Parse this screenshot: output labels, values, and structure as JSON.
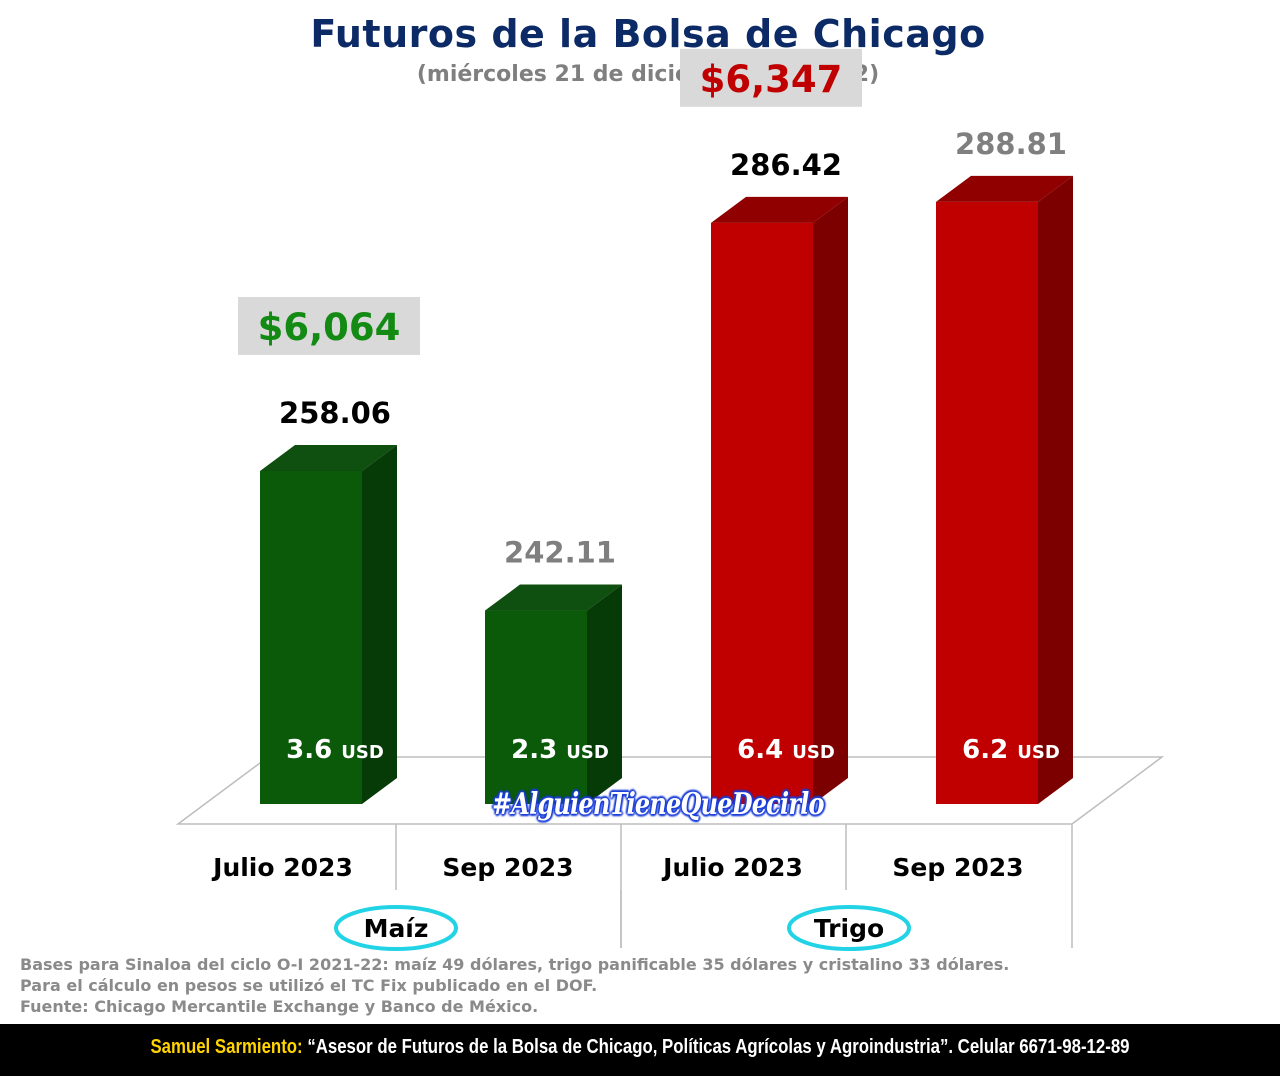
{
  "title": "Futuros de la Bolsa de Chicago",
  "subtitle": "(miércoles 21 de diciembre del 2022)",
  "chart_data": {
    "type": "bar",
    "categories": [
      "Julio 2023",
      "Sep 2023",
      "Julio 2023",
      "Sep 2023"
    ],
    "groups": [
      "Maíz",
      "Trigo"
    ],
    "group_of_category": [
      0,
      0,
      1,
      1
    ],
    "values": [
      258.06,
      242.11,
      286.42,
      288.81
    ],
    "value_labels": [
      "258.06",
      "242.11",
      "286.42",
      "288.81"
    ],
    "bar_texts": [
      "3.6 USD",
      "2.3 USD",
      "6.4 USD",
      "6.2 USD"
    ],
    "bar_amounts": [
      "3.6",
      "2.3",
      "6.4",
      "6.2"
    ],
    "bar_unit": "USD",
    "peso_labels": [
      "$6,064",
      "",
      "$6,347",
      ""
    ],
    "ylim": [
      220,
      300
    ],
    "colors": {
      "maiz_front": "#0a5a0a",
      "maiz_side": "#063a06",
      "maiz_top": "#0f4f0f",
      "trigo_front": "#c00000",
      "trigo_side": "#7d0000",
      "trigo_top": "#900000",
      "peso_maiz": "#138a13",
      "peso_trigo": "#c00000",
      "value_dark": "#000000",
      "value_gray": "#7f7f7f"
    },
    "value_label_style": [
      "dark",
      "gray",
      "dark",
      "gray"
    ],
    "grid": false,
    "legend": "none"
  },
  "hashtag": "#AlguienTieneQueDecirlo",
  "notes": [
    "Bases para Sinaloa del ciclo O-I 2021-22: maíz 49 dólares, trigo panificable 35 dólares y cristalino 33 dólares.",
    "Para el cálculo en pesos se utilizó el TC Fix publicado en el DOF.",
    "Fuente: Chicago Mercantile Exchange y Banco de México."
  ],
  "footer": {
    "name": "Samuel Sarmiento:",
    "text": " “Asesor de Futuros de la Bolsa de Chicago, Políticas Agrícolas y Agroindustria”. Celular 6671-98-12-89"
  }
}
